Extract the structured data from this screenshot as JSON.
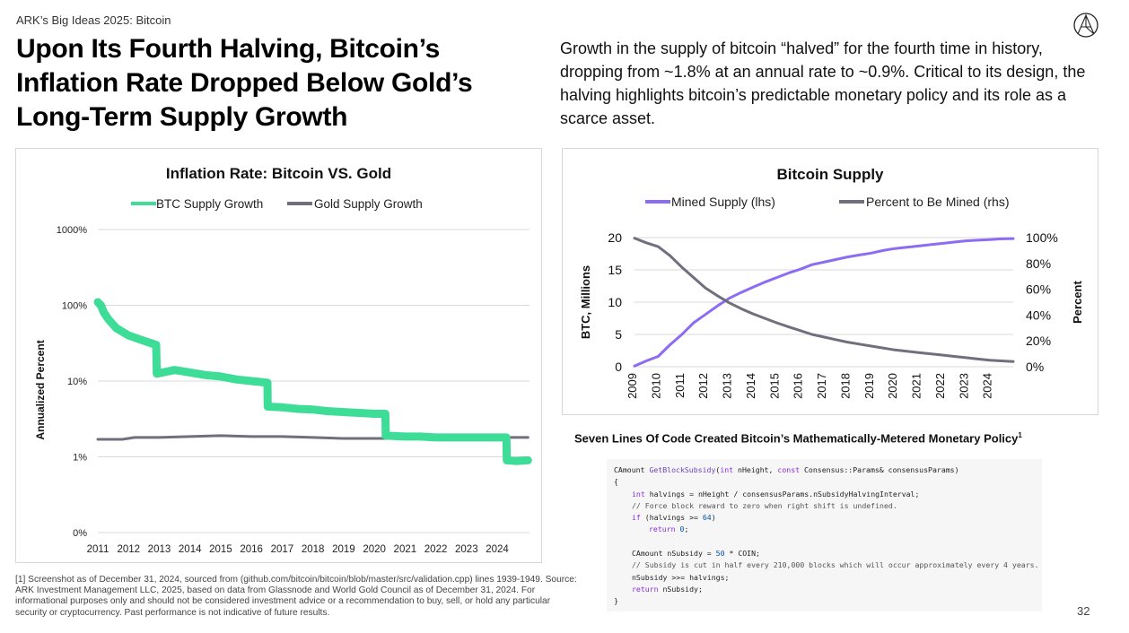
{
  "header": {
    "kicker": "ARK’s Big Ideas 2025: Bitcoin",
    "headline": "Upon Its Fourth Halving, Bitcoin’s Inflation Rate Dropped Below Gold’s Long-Term Supply Growth",
    "intro": "Growth in the supply of bitcoin “halved” for the fourth time in history, dropping from ~1.8% at an annual rate to ~0.9%. Critical to its design, the halving highlights bitcoin’s predictable monetary policy and its role as a scarce asset."
  },
  "colors": {
    "btc": "#3ddc97",
    "gold": "#6f6f7d",
    "mined": "#8b6cf2",
    "percent": "#6f6f7d",
    "grid": "#d9d9d9"
  },
  "chart_data": [
    {
      "type": "line",
      "title": "Inflation Rate: Bitcoin VS. Gold",
      "ylabel": "Annualized Percent",
      "xlabel": "",
      "yscale": "log",
      "ytick_labels": [
        "1000%",
        "100%",
        "10%",
        "1%",
        "0%"
      ],
      "ytick_values": [
        1000,
        100,
        10,
        1,
        0.1
      ],
      "ylim": [
        0.1,
        1000
      ],
      "xlim": [
        2011,
        2025.05
      ],
      "xtick_labels": [
        "2011",
        "2012",
        "2013",
        "2014",
        "2015",
        "2016",
        "2017",
        "2018",
        "2019",
        "2020",
        "2021",
        "2022",
        "2023",
        "2024"
      ],
      "legend_position": "top-center",
      "grid": "horizontal",
      "series": [
        {
          "name": "BTC Supply Growth",
          "x": [
            2011.0,
            2011.1,
            2011.2,
            2011.35,
            2011.6,
            2012.0,
            2012.5,
            2012.9,
            2012.92,
            2013.5,
            2014.0,
            2014.5,
            2015.0,
            2015.5,
            2016.0,
            2016.52,
            2016.53,
            2017.0,
            2017.5,
            2018.0,
            2018.5,
            2019.0,
            2019.5,
            2020.0,
            2020.36,
            2020.37,
            2021.0,
            2021.5,
            2022.0,
            2022.5,
            2023.0,
            2023.5,
            2024.0,
            2024.3,
            2024.31,
            2024.6,
            2025.0
          ],
          "values": [
            110,
            100,
            80,
            65,
            50,
            40,
            34,
            30,
            12.5,
            14,
            13,
            12,
            11.5,
            10.5,
            10,
            9.5,
            4.6,
            4.5,
            4.3,
            4.2,
            4.0,
            3.9,
            3.8,
            3.7,
            3.7,
            1.9,
            1.85,
            1.85,
            1.8,
            1.8,
            1.8,
            1.8,
            1.8,
            1.8,
            0.9,
            0.88,
            0.9
          ]
        },
        {
          "name": "Gold Supply Growth",
          "x": [
            2011.0,
            2011.8,
            2012.2,
            2013.0,
            2014.0,
            2015.0,
            2016.0,
            2017.0,
            2018.0,
            2019.0,
            2020.0,
            2021.0,
            2022.0,
            2023.0,
            2024.0,
            2025.0
          ],
          "values": [
            1.7,
            1.7,
            1.8,
            1.8,
            1.85,
            1.9,
            1.85,
            1.85,
            1.8,
            1.75,
            1.75,
            1.75,
            1.75,
            1.75,
            1.8,
            1.8
          ]
        }
      ]
    },
    {
      "type": "line",
      "title": "Bitcoin Supply",
      "ylabel": "BTC, Millions",
      "y2label": "Percent",
      "ylim": [
        0,
        20
      ],
      "y2lim": [
        0,
        100
      ],
      "ytick_labels": [
        "0",
        "5",
        "10",
        "15",
        "20"
      ],
      "ytick_values": [
        0,
        5,
        10,
        15,
        20
      ],
      "y2tick_labels": [
        "0%",
        "20%",
        "40%",
        "60%",
        "80%",
        "100%"
      ],
      "y2tick_values": [
        0,
        20,
        40,
        60,
        80,
        100
      ],
      "xlim": [
        2009,
        2025
      ],
      "xtick_labels": [
        "2009",
        "2010",
        "2011",
        "2012",
        "2013",
        "2014",
        "2015",
        "2016",
        "2017",
        "2018",
        "2019",
        "2020",
        "2021",
        "2022",
        "2023",
        "2024"
      ],
      "legend_position": "top-center",
      "grid": "horizontal",
      "series": [
        {
          "name": "Mined Supply (lhs)",
          "axis": "left",
          "x": [
            2009,
            2009.5,
            2010,
            2010.5,
            2011,
            2011.5,
            2012,
            2012.5,
            2013,
            2013.5,
            2014,
            2014.5,
            2015,
            2015.5,
            2016,
            2016.5,
            2017,
            2017.5,
            2018,
            2018.5,
            2019,
            2019.5,
            2020,
            2020.5,
            2021,
            2021.5,
            2022,
            2022.5,
            2023,
            2023.5,
            2024,
            2024.5,
            2025
          ],
          "values": [
            0.1,
            0.9,
            1.6,
            3.4,
            5.0,
            6.8,
            8.1,
            9.4,
            10.6,
            11.5,
            12.3,
            13.1,
            13.8,
            14.5,
            15.1,
            15.8,
            16.2,
            16.6,
            17.0,
            17.3,
            17.6,
            18.0,
            18.3,
            18.5,
            18.7,
            18.9,
            19.1,
            19.3,
            19.5,
            19.6,
            19.7,
            19.8,
            19.85
          ]
        },
        {
          "name": "Percent to Be Mined (rhs)",
          "axis": "right",
          "x": [
            2009,
            2009.5,
            2010,
            2010.5,
            2011,
            2011.5,
            2012,
            2012.5,
            2013,
            2013.5,
            2014,
            2014.5,
            2015,
            2015.5,
            2016,
            2016.5,
            2017,
            2017.5,
            2018,
            2018.5,
            2019,
            2019.5,
            2020,
            2020.5,
            2021,
            2021.5,
            2022,
            2022.5,
            2023,
            2023.5,
            2024,
            2024.5,
            2025
          ],
          "values": [
            99.6,
            96,
            93,
            86,
            77,
            69,
            61,
            55,
            49.5,
            45,
            41,
            37.5,
            34,
            31,
            28,
            25,
            23,
            21,
            19,
            17.5,
            16,
            14.5,
            13,
            12,
            11,
            10,
            9,
            8,
            7,
            6,
            5,
            4.5,
            4
          ]
        }
      ]
    }
  ],
  "code": {
    "title": "Seven Lines Of Code Created Bitcoin’s Mathematically-Metered Monetary Policy",
    "title_footnote_mark": "1",
    "l1_type": "CAmount ",
    "l1_fn": "GetBlockSubsidy",
    "l1_open": "(",
    "l1_int": "int",
    "l1_mid": " nHeight, ",
    "l1_const": "const",
    "l1_rest": " Consensus::Params& consensusParams)",
    "l2": "{",
    "l3_int": "int",
    "l3_rest": " halvings = nHeight / consensusParams.nSubsidyHalvingInterval;",
    "l4": "// Force block reward to zero when right shift is undefined.",
    "l5_if": "if",
    "l5_mid": " (halvings >= ",
    "l5_num": "64",
    "l5_end": ")",
    "l6_ret": "return",
    "l6_sp": " ",
    "l6_num": "0",
    "l6_end": ";",
    "l7_a": "CAmount nSubsidy = ",
    "l7_num": "50",
    "l7_b": " * COIN;",
    "l8": "// Subsidy is cut in half every 210,000 blocks which will occur approximately every 4 years.",
    "l9": "nSubsidy >>= halvings;",
    "l10_ret": "return",
    "l10_rest": " nSubsidy;",
    "l11": "}"
  },
  "footnote": "[1] Screenshot as of December 31, 2024, sourced from (github.com/bitcoin/bitcoin/blob/master/src/validation.cpp) lines 1939-1949. Source: ARK Investment Management LLC, 2025, based on data from Glassnode and World Gold Council as of December 31, 2024. For informational purposes only and should not be considered investment advice or a recommendation to buy, sell, or hold any particular security or cryptocurrency. Past performance is not indicative of future results.",
  "page_number": "32"
}
